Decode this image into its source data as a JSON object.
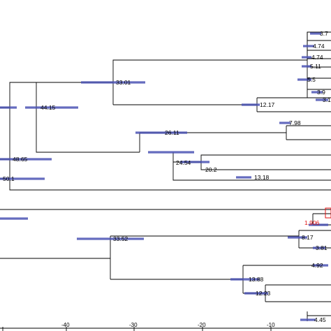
{
  "axis": {
    "ticks": [
      {
        "value": -40,
        "label": "-40"
      },
      {
        "value": -30,
        "label": "-30"
      },
      {
        "value": -20,
        "label": "-20"
      },
      {
        "value": -10,
        "label": "-10"
      }
    ]
  },
  "node_labels": [
    {
      "id": "n3_7",
      "text": "3.7"
    },
    {
      "id": "n4_74a",
      "text": "4.74"
    },
    {
      "id": "n4_74b",
      "text": "4.74"
    },
    {
      "id": "n5_11",
      "text": "5.11"
    },
    {
      "id": "n5_5",
      "text": "5.5"
    },
    {
      "id": "n3_9",
      "text": "3.9"
    },
    {
      "id": "n3_1",
      "text": "3.1"
    },
    {
      "id": "n33_01",
      "text": "33.01"
    },
    {
      "id": "n44_15",
      "text": "44.15"
    },
    {
      "id": "n12_17",
      "text": "12.17"
    },
    {
      "id": "n7_98",
      "text": "7.98"
    },
    {
      "id": "n26_11",
      "text": "26.11"
    },
    {
      "id": "n24_54",
      "text": "24.54"
    },
    {
      "id": "n48_65",
      "text": "48.65"
    },
    {
      "id": "n20_2",
      "text": "20.2"
    },
    {
      "id": "n13_18",
      "text": "13.18"
    },
    {
      "id": "n50_1",
      "text": "50.1"
    },
    {
      "id": "n1_906",
      "text": "1.906",
      "highlight": true
    },
    {
      "id": "n8_17",
      "text": "8.17"
    },
    {
      "id": "n3_81",
      "text": "3.81"
    },
    {
      "id": "n33_52",
      "text": "33.52"
    },
    {
      "id": "n4_92",
      "text": "4.92"
    },
    {
      "id": "n13_88",
      "text": "13.88"
    },
    {
      "id": "n12_23",
      "text": "12.23"
    },
    {
      "id": "n4_45",
      "text": "4.45"
    }
  ],
  "colors": {
    "branch": "#000000",
    "hpd_bar": "#4a52b4",
    "highlight_label": "#e01010"
  }
}
